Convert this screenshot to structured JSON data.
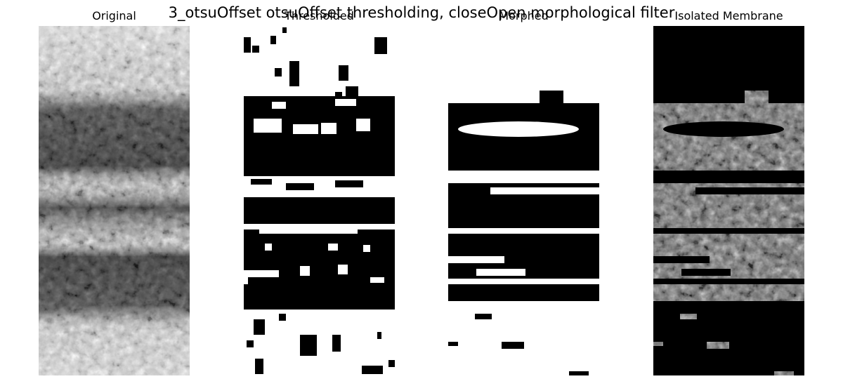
{
  "figure": {
    "suptitle": "3_otsuOffset otsuOffset thresholding, closeOpen morphological filter",
    "panels": [
      {
        "id": "original",
        "title": "Original",
        "icon": "grayscale-micrograph"
      },
      {
        "id": "thresholded",
        "title": "Thresholded",
        "icon": "binary-mask"
      },
      {
        "id": "morphed",
        "title": "Morphed",
        "icon": "binary-mask"
      },
      {
        "id": "isolated",
        "title": "Isolated Membrane",
        "icon": "masked-micrograph"
      }
    ]
  },
  "colors": {
    "background": "#ffffff",
    "black": "#000000",
    "white": "#ffffff",
    "gray_dark": "#3a3a3a",
    "gray_mid": "#8a8a8a",
    "gray_light": "#d8d8d8"
  }
}
